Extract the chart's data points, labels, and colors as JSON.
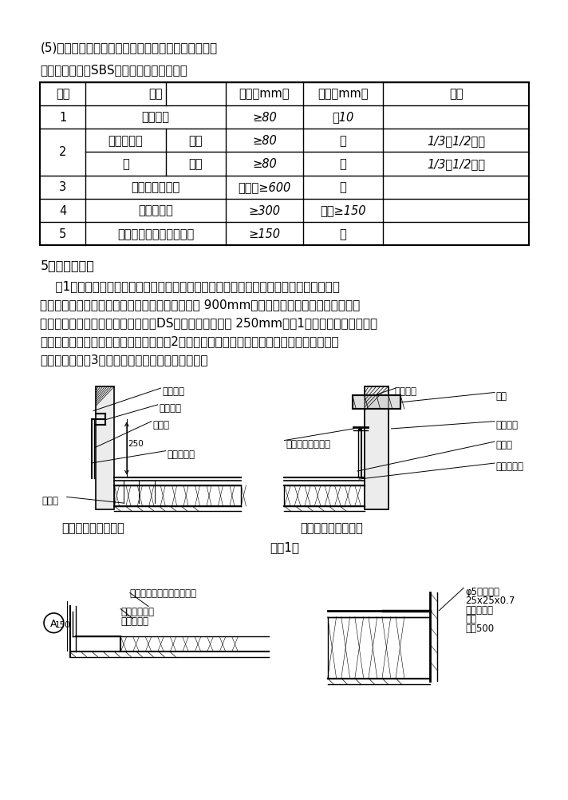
{
  "page_bg": "#ffffff",
  "title1": "(5)、卷材之间的搞接、错开等主要技术参数见下表：",
  "title2": "本工程要求屋面SBS防水卷材采用满粘法：",
  "table_headers": [
    "序号",
    "项目",
    "尺寸（mm）",
    "偏差（mm）",
    "备注"
  ],
  "section5_title": "5、细部构造：",
  "para_lines": [
    "    （1）、立面防水卷材卷至天沟、檐沟、檐口、泻水位置时，卷材端部应裁齐，塞入预留凹槽内，用金属压条钉压固定，最大钉距不应大于 900mm，并用密封材料嵌填密实。女儿墙位置的立面防水卷材收口高度距屋面DS砂浆保护层不小于 250mm（图1）；对于天沟、檐沟，",
    "则防水层应由沟底翻上至沟外檐顶部（图2）；对于双墙变形缝，则需单独裁剪防水卷材做盖缝防水处理（图3）。各细部节点做法如下图所示："
  ],
  "fig1_label_left": "无压顶屋面防水收头",
  "fig1_label_right": "有压顶屋面防水收头",
  "fig1_caption": "（图1）"
}
